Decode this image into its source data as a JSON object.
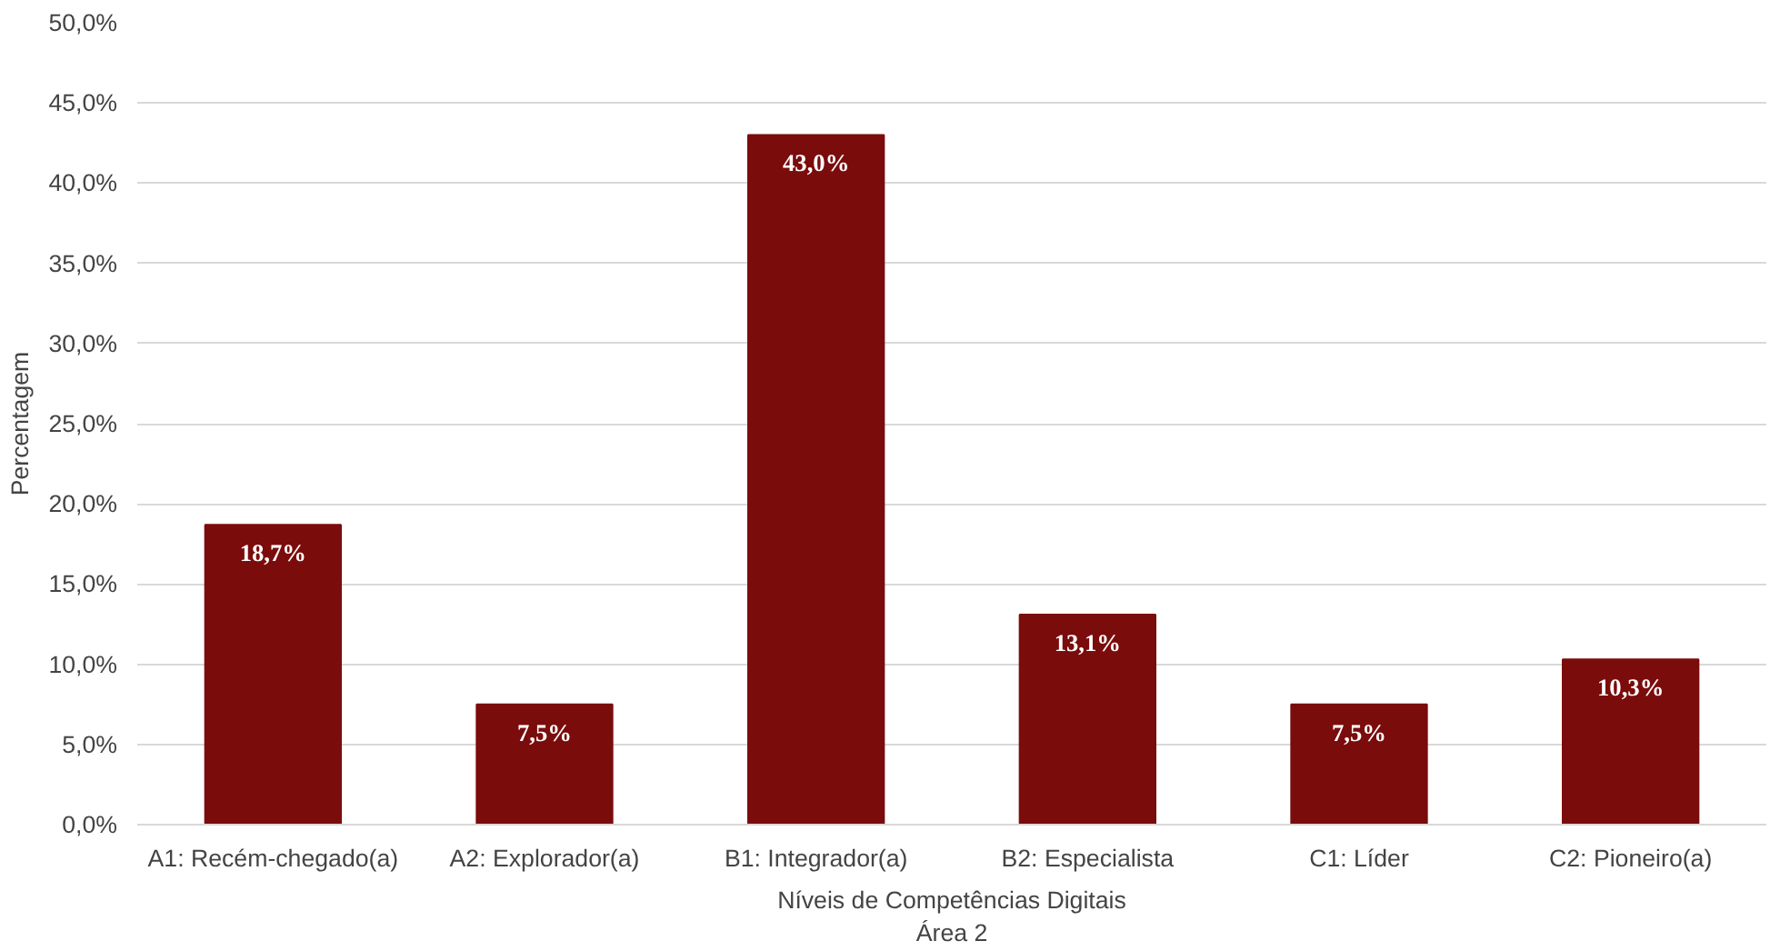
{
  "chart_data": {
    "type": "bar",
    "xlabel": "Níveis de Competências Digitais\nÁrea 2",
    "ylabel": "Percentagem",
    "categories": [
      "A1: Recém-chegado(a)",
      "A2: Explorador(a)",
      "B1: Integrador(a)",
      "B2: Especialista",
      "C1: Líder",
      "C2: Pioneiro(a)"
    ],
    "values": [
      18.7,
      7.5,
      43.0,
      13.1,
      7.5,
      10.3
    ],
    "value_labels": [
      "18,7%",
      "7,5%",
      "43,0%",
      "13,1%",
      "7,5%",
      "10,3%"
    ],
    "color": "#7b0c0c",
    "ylim": [
      0,
      50
    ],
    "yticks": [
      {
        "value": 0,
        "label": "0,0%"
      },
      {
        "value": 5,
        "label": "5,0%"
      },
      {
        "value": 10,
        "label": "10,0%"
      },
      {
        "value": 15,
        "label": "15,0%"
      },
      {
        "value": 20,
        "label": "20,0%"
      },
      {
        "value": 25,
        "label": "25,0%"
      },
      {
        "value": 30,
        "label": "30,0%"
      },
      {
        "value": 35,
        "label": "35,0%"
      },
      {
        "value": 40,
        "label": "40,0%"
      },
      {
        "value": 45,
        "label": "45,0%"
      },
      {
        "value": 50,
        "label": "50,0%"
      }
    ],
    "grid": "y"
  }
}
